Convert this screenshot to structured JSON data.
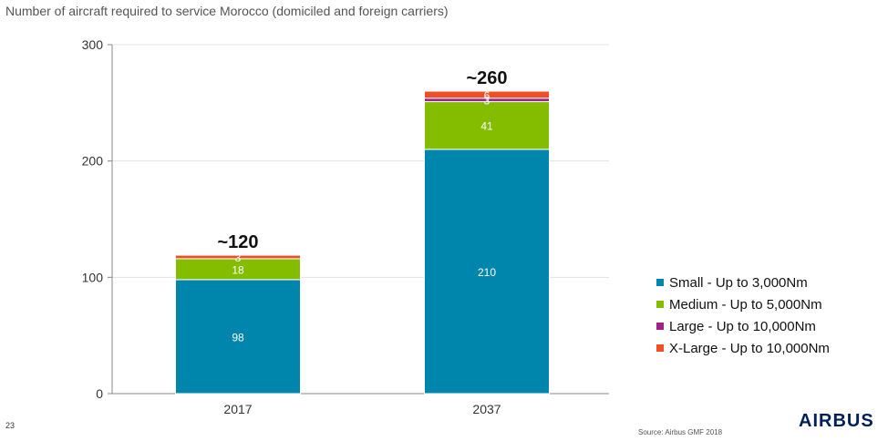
{
  "chart_data": {
    "type": "bar",
    "stacked": true,
    "title": "Number of aircraft required to service Morocco (domiciled and foreign carriers)",
    "categories": [
      "2017",
      "2037"
    ],
    "series": [
      {
        "name": "Small - Up to 3,000Nm",
        "values": [
          98,
          210
        ],
        "color": "#0086ad"
      },
      {
        "name": "Medium - Up to 5,000Nm",
        "values": [
          18,
          41
        ],
        "color": "#84bd00"
      },
      {
        "name": "Large - Up to 10,000Nm",
        "values": [
          0,
          3
        ],
        "color": "#a0218c"
      },
      {
        "name": "X-Large - Up to 10,000Nm",
        "values": [
          3,
          6
        ],
        "color": "#f04e23"
      }
    ],
    "segment_labels": [
      [
        "98",
        "210"
      ],
      [
        "18",
        "41"
      ],
      [
        "",
        "3"
      ],
      [
        "3",
        "6"
      ]
    ],
    "totals": [
      "~120",
      "~260"
    ],
    "ylim": [
      0,
      300
    ],
    "yticks": [
      0,
      100,
      200,
      300
    ],
    "ytick_labels": [
      "0",
      "100",
      "200",
      "300"
    ],
    "grid": true,
    "legend_position": "right"
  },
  "footer": {
    "page_number": "23",
    "source": "Source: Airbus GMF 2018",
    "logo_text": "AIRBUS"
  }
}
